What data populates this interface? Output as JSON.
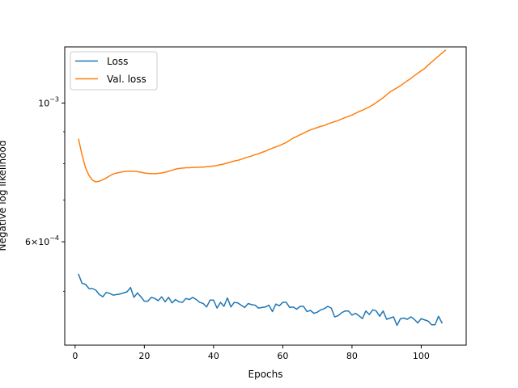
{
  "chart_data": {
    "type": "line",
    "xlabel": "Epochs",
    "ylabel": "Negative log likelihood",
    "yscale": "log",
    "xlim": [
      -3,
      113
    ],
    "ylim": [
      0.00041,
      0.00123
    ],
    "xticks": [
      0,
      20,
      40,
      60,
      80,
      100
    ],
    "yticks": [
      {
        "value": 0.0006,
        "mantissa": "6×10",
        "exponent": "−4"
      },
      {
        "value": 0.001,
        "mantissa": "10",
        "exponent": "−3"
      }
    ],
    "legend": "top-left",
    "grid": false,
    "series": [
      {
        "name": "Loss",
        "color": "#1f77b4",
        "x_start": 1,
        "values": [
          0.000532,
          0.000515,
          0.000513,
          0.000505,
          0.000505,
          0.000502,
          0.000494,
          0.00049,
          0.000498,
          0.000496,
          0.000493,
          0.000494,
          0.000495,
          0.000497,
          0.000499,
          0.000507,
          0.000489,
          0.000497,
          0.00049,
          0.000482,
          0.000482,
          0.000489,
          0.000487,
          0.000483,
          0.00049,
          0.000481,
          0.000489,
          0.000479,
          0.000485,
          0.000481,
          0.00048,
          0.000487,
          0.000485,
          0.000489,
          0.000485,
          0.00048,
          0.000478,
          0.000472,
          0.000484,
          0.000484,
          0.00047,
          0.00048,
          0.000473,
          0.000488,
          0.000472,
          0.00048,
          0.000479,
          0.000475,
          0.000471,
          0.000478,
          0.000476,
          0.000475,
          0.00047,
          0.000471,
          0.000472,
          0.000475,
          0.000464,
          0.000477,
          0.000474,
          0.00048,
          0.00048,
          0.000471,
          0.000472,
          0.000468,
          0.000473,
          0.000473,
          0.000464,
          0.000466,
          0.000461,
          0.000463,
          0.000467,
          0.000469,
          0.000473,
          0.00047,
          0.000455,
          0.000457,
          0.000462,
          0.000465,
          0.000465,
          0.000458,
          0.000461,
          0.000457,
          0.000452,
          0.000465,
          0.000459,
          0.000467,
          0.000465,
          0.000456,
          0.000465,
          0.000451,
          0.000453,
          0.000455,
          0.000441,
          0.000452,
          0.000453,
          0.000451,
          0.000455,
          0.000451,
          0.000445,
          0.000452,
          0.00045,
          0.000448,
          0.000442,
          0.000442,
          0.000456,
          0.000445
        ]
      },
      {
        "name": "Val. loss",
        "color": "#ff7f0e",
        "x_start": 1,
        "values": [
          0.000875,
          0.000826,
          0.000788,
          0.000766,
          0.000753,
          0.000748,
          0.00075,
          0.000754,
          0.000759,
          0.000765,
          0.00077,
          0.000773,
          0.000775,
          0.000777,
          0.000778,
          0.000778,
          0.000778,
          0.000777,
          0.000775,
          0.000773,
          0.000772,
          0.000771,
          0.000771,
          0.000772,
          0.000773,
          0.000775,
          0.000778,
          0.000781,
          0.000784,
          0.000786,
          0.000787,
          0.000788,
          0.000788,
          0.000789,
          0.000789,
          0.00079,
          0.00079,
          0.000791,
          0.000792,
          0.000793,
          0.000795,
          0.000797,
          0.000799,
          0.000802,
          0.000805,
          0.000808,
          0.00081,
          0.000813,
          0.000817,
          0.00082,
          0.000823,
          0.000827,
          0.00083,
          0.000834,
          0.000838,
          0.000843,
          0.000847,
          0.000851,
          0.000855,
          0.00086,
          0.000865,
          0.000872,
          0.000879,
          0.000884,
          0.00089,
          0.000895,
          0.000901,
          0.000906,
          0.00091,
          0.000914,
          0.000918,
          0.000921,
          0.000926,
          0.00093,
          0.000934,
          0.000938,
          0.000943,
          0.000948,
          0.000952,
          0.000957,
          0.000963,
          0.000969,
          0.000974,
          0.00098,
          0.000986,
          0.000993,
          0.001002,
          0.001011,
          0.00102,
          0.001031,
          0.001042,
          0.00105,
          0.001058,
          0.001066,
          0.001076,
          0.001086,
          0.001095,
          0.001106,
          0.001116,
          0.001126,
          0.001136,
          0.00115,
          0.001163,
          0.001176,
          0.001189,
          0.001202,
          0.001215
        ]
      }
    ]
  }
}
